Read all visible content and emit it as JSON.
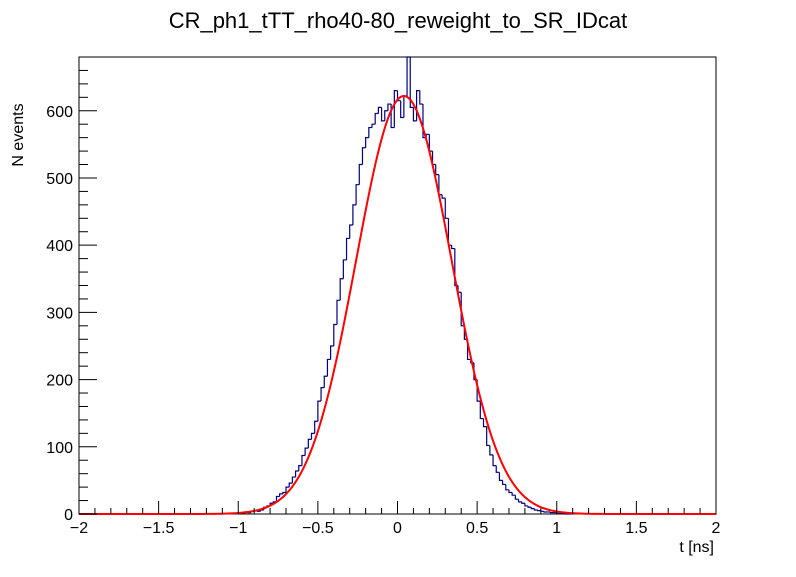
{
  "chart_data": {
    "type": "histogram",
    "title": "CR_ph1_tTT_rho40-80_reweight_to_SR_IDcat",
    "xlabel": "t [ns]",
    "ylabel": "N events",
    "xlim": [
      -2,
      2
    ],
    "ylim": [
      0,
      680
    ],
    "x_ticks": [
      -2,
      -1.5,
      -1,
      -0.5,
      0,
      0.5,
      1,
      1.5,
      2
    ],
    "x_tick_labels": [
      "−2",
      "−1.5",
      "−1",
      "−0.5",
      "0",
      "0.5",
      "1",
      "1.5",
      "2"
    ],
    "y_ticks": [
      0,
      100,
      200,
      300,
      400,
      500,
      600
    ],
    "y_tick_labels": [
      "0",
      "100",
      "200",
      "300",
      "400",
      "500",
      "600"
    ],
    "grid": false,
    "colors": {
      "histogram": "#000080",
      "fit": "#ff0000"
    },
    "series": [
      {
        "kind": "histogram",
        "bin_width": 0.02,
        "bins_x_low": [
          -1.0,
          -0.98,
          -0.96,
          -0.94,
          -0.92,
          -0.9,
          -0.88,
          -0.86,
          -0.84,
          -0.82,
          -0.8,
          -0.78,
          -0.76,
          -0.74,
          -0.72,
          -0.7,
          -0.68,
          -0.66,
          -0.64,
          -0.62,
          -0.6,
          -0.58,
          -0.56,
          -0.54,
          -0.52,
          -0.5,
          -0.48,
          -0.46,
          -0.44,
          -0.42,
          -0.4,
          -0.38,
          -0.36,
          -0.34,
          -0.32,
          -0.3,
          -0.28,
          -0.26,
          -0.24,
          -0.22,
          -0.2,
          -0.18,
          -0.16,
          -0.14,
          -0.12,
          -0.1,
          -0.08,
          -0.06,
          -0.04,
          -0.02,
          0.0,
          0.02,
          0.04,
          0.06,
          0.08,
          0.1,
          0.12,
          0.14,
          0.16,
          0.18,
          0.2,
          0.22,
          0.24,
          0.26,
          0.28,
          0.3,
          0.32,
          0.34,
          0.36,
          0.38,
          0.4,
          0.42,
          0.44,
          0.46,
          0.48,
          0.5,
          0.52,
          0.54,
          0.56,
          0.58,
          0.6,
          0.62,
          0.64,
          0.66,
          0.68,
          0.7,
          0.72,
          0.74,
          0.76,
          0.78,
          0.8,
          0.82,
          0.84,
          0.86,
          0.88,
          0.9,
          0.92,
          0.94,
          0.96,
          0.98,
          1.0,
          1.02,
          1.04,
          1.06,
          1.08
        ],
        "counts": [
          1,
          2,
          3,
          2,
          4,
          5,
          4,
          6,
          10,
          12,
          16,
          18,
          26,
          30,
          32,
          40,
          46,
          55,
          64,
          72,
          87,
          98,
          111,
          120,
          138,
          168,
          188,
          205,
          230,
          250,
          282,
          318,
          350,
          378,
          410,
          430,
          460,
          490,
          520,
          545,
          560,
          575,
          580,
          596,
          605,
          585,
          600,
          610,
          575,
          630,
          615,
          590,
          622,
          682,
          605,
          585,
          630,
          610,
          560,
          565,
          540,
          520,
          505,
          475,
          470,
          440,
          400,
          395,
          340,
          330,
          280,
          260,
          230,
          225,
          200,
          168,
          142,
          130,
          102,
          88,
          72,
          62,
          50,
          44,
          36,
          32,
          28,
          22,
          18,
          16,
          12,
          10,
          8,
          6,
          5,
          4,
          3,
          3,
          2,
          2,
          1,
          1,
          1,
          0,
          0
        ]
      },
      {
        "kind": "fit",
        "model": "gaussian",
        "amplitude": 622,
        "mean": 0.04,
        "sigma": 0.3,
        "x_range": [
          -2,
          2
        ]
      }
    ]
  }
}
